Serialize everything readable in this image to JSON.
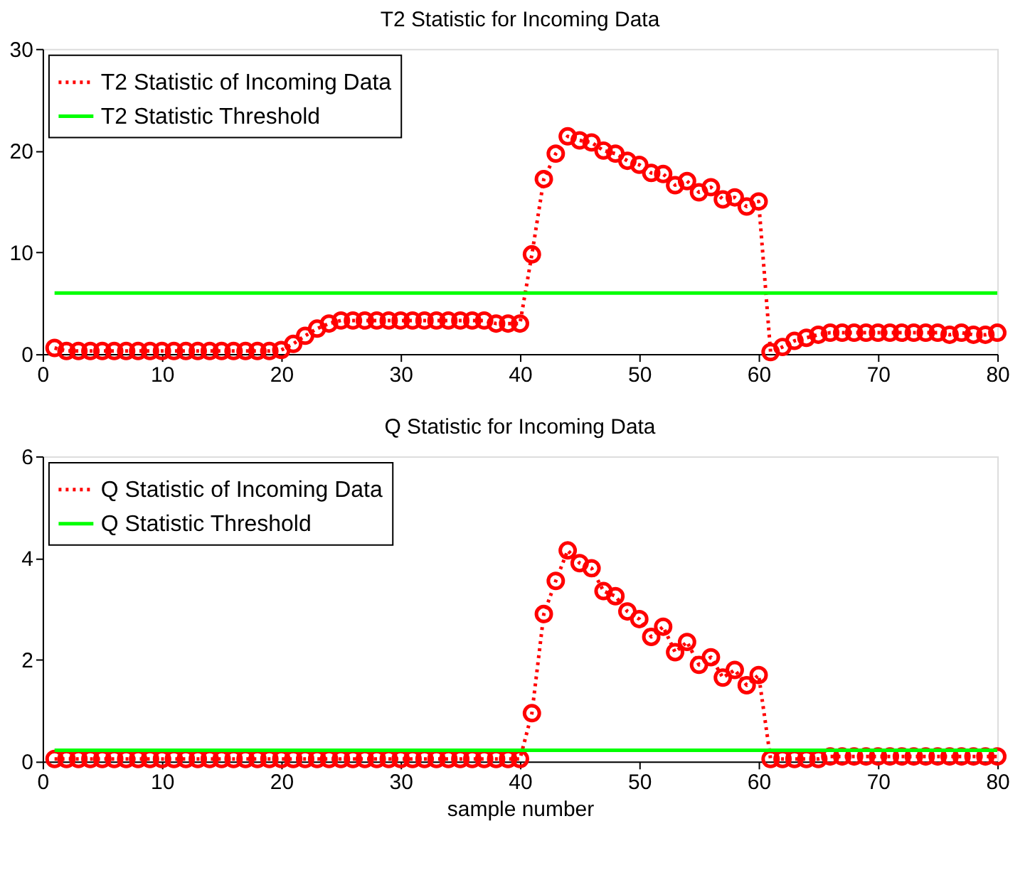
{
  "chart_data": [
    {
      "type": "line",
      "title": "T2 Statistic for Incoming Data",
      "x": [
        1,
        2,
        3,
        4,
        5,
        6,
        7,
        8,
        9,
        10,
        11,
        12,
        13,
        14,
        15,
        16,
        17,
        18,
        19,
        20,
        21,
        22,
        23,
        24,
        25,
        26,
        27,
        28,
        29,
        30,
        31,
        32,
        33,
        34,
        35,
        36,
        37,
        38,
        39,
        40,
        41,
        42,
        43,
        44,
        45,
        46,
        47,
        48,
        49,
        50,
        51,
        52,
        53,
        54,
        55,
        56,
        57,
        58,
        59,
        60,
        61,
        62,
        63,
        64,
        65,
        66,
        67,
        68,
        69,
        70,
        71,
        72,
        73,
        74,
        75,
        76,
        77,
        78,
        79,
        80
      ],
      "series": [
        {
          "name": "T2 Statistic of Incoming Data",
          "color": "#ff0000",
          "line_style": "dotted",
          "marker": "circle",
          "values": [
            0.6,
            0.3,
            0.3,
            0.3,
            0.3,
            0.3,
            0.3,
            0.3,
            0.3,
            0.3,
            0.3,
            0.3,
            0.3,
            0.3,
            0.3,
            0.3,
            0.3,
            0.3,
            0.3,
            0.4,
            1.0,
            1.8,
            2.5,
            3.0,
            3.3,
            3.3,
            3.3,
            3.3,
            3.3,
            3.3,
            3.3,
            3.3,
            3.3,
            3.3,
            3.3,
            3.3,
            3.3,
            3.0,
            3.0,
            3.0,
            9.8,
            17.2,
            19.7,
            21.4,
            21.0,
            20.8,
            20.0,
            19.7,
            19.0,
            18.6,
            17.8,
            17.7,
            16.6,
            17.0,
            15.9,
            16.4,
            15.2,
            15.4,
            14.5,
            15.0,
            0.2,
            0.7,
            1.3,
            1.6,
            1.9,
            2.1,
            2.1,
            2.1,
            2.1,
            2.1,
            2.1,
            2.1,
            2.1,
            2.1,
            2.1,
            1.9,
            2.1,
            1.9,
            1.9,
            2.1
          ]
        },
        {
          "name": "T2 Statistic Threshold",
          "color": "#00ff00",
          "line_style": "solid",
          "marker": "none",
          "values": [
            6.0,
            6.0,
            6.0,
            6.0,
            6.0,
            6.0,
            6.0,
            6.0,
            6.0,
            6.0,
            6.0,
            6.0,
            6.0,
            6.0,
            6.0,
            6.0,
            6.0,
            6.0,
            6.0,
            6.0,
            6.0,
            6.0,
            6.0,
            6.0,
            6.0,
            6.0,
            6.0,
            6.0,
            6.0,
            6.0,
            6.0,
            6.0,
            6.0,
            6.0,
            6.0,
            6.0,
            6.0,
            6.0,
            6.0,
            6.0,
            6.0,
            6.0,
            6.0,
            6.0,
            6.0,
            6.0,
            6.0,
            6.0,
            6.0,
            6.0,
            6.0,
            6.0,
            6.0,
            6.0,
            6.0,
            6.0,
            6.0,
            6.0,
            6.0,
            6.0,
            6.0,
            6.0,
            6.0,
            6.0,
            6.0,
            6.0,
            6.0,
            6.0,
            6.0,
            6.0,
            6.0,
            6.0,
            6.0,
            6.0,
            6.0,
            6.0,
            6.0,
            6.0,
            6.0,
            6.0
          ]
        }
      ],
      "xlim": [
        0,
        80
      ],
      "xticks": [
        0,
        10,
        20,
        30,
        40,
        50,
        60,
        70,
        80
      ],
      "ylim": [
        0,
        30
      ],
      "yticks": [
        0,
        10,
        20,
        30
      ],
      "grid": false,
      "legend": "top left"
    },
    {
      "type": "line",
      "title": "Q Statistic for Incoming Data",
      "xlabel": "sample number",
      "x": [
        1,
        2,
        3,
        4,
        5,
        6,
        7,
        8,
        9,
        10,
        11,
        12,
        13,
        14,
        15,
        16,
        17,
        18,
        19,
        20,
        21,
        22,
        23,
        24,
        25,
        26,
        27,
        28,
        29,
        30,
        31,
        32,
        33,
        34,
        35,
        36,
        37,
        38,
        39,
        40,
        41,
        42,
        43,
        44,
        45,
        46,
        47,
        48,
        49,
        50,
        51,
        52,
        53,
        54,
        55,
        56,
        57,
        58,
        59,
        60,
        61,
        62,
        63,
        64,
        65,
        66,
        67,
        68,
        69,
        70,
        71,
        72,
        73,
        74,
        75,
        76,
        77,
        78,
        79,
        80
      ],
      "series": [
        {
          "name": "Q Statistic of Incoming Data",
          "color": "#ff0000",
          "line_style": "dotted",
          "marker": "circle",
          "values": [
            0.05,
            0.05,
            0.05,
            0.05,
            0.05,
            0.05,
            0.05,
            0.05,
            0.05,
            0.05,
            0.05,
            0.05,
            0.05,
            0.05,
            0.05,
            0.05,
            0.05,
            0.05,
            0.05,
            0.05,
            0.05,
            0.05,
            0.05,
            0.05,
            0.05,
            0.05,
            0.05,
            0.05,
            0.05,
            0.05,
            0.05,
            0.05,
            0.05,
            0.05,
            0.05,
            0.05,
            0.05,
            0.05,
            0.05,
            0.05,
            0.95,
            2.9,
            3.55,
            4.15,
            3.9,
            3.8,
            3.35,
            3.25,
            2.95,
            2.8,
            2.45,
            2.65,
            2.15,
            2.35,
            1.9,
            2.05,
            1.65,
            1.8,
            1.5,
            1.7,
            0.05,
            0.05,
            0.05,
            0.05,
            0.05,
            0.1,
            0.1,
            0.1,
            0.1,
            0.1,
            0.1,
            0.1,
            0.1,
            0.1,
            0.1,
            0.1,
            0.1,
            0.1,
            0.1,
            0.1
          ]
        },
        {
          "name": "Q Statistic Threshold",
          "color": "#00ff00",
          "line_style": "solid",
          "marker": "none",
          "values": [
            0.22,
            0.22,
            0.22,
            0.22,
            0.22,
            0.22,
            0.22,
            0.22,
            0.22,
            0.22,
            0.22,
            0.22,
            0.22,
            0.22,
            0.22,
            0.22,
            0.22,
            0.22,
            0.22,
            0.22,
            0.22,
            0.22,
            0.22,
            0.22,
            0.22,
            0.22,
            0.22,
            0.22,
            0.22,
            0.22,
            0.22,
            0.22,
            0.22,
            0.22,
            0.22,
            0.22,
            0.22,
            0.22,
            0.22,
            0.22,
            0.22,
            0.22,
            0.22,
            0.22,
            0.22,
            0.22,
            0.22,
            0.22,
            0.22,
            0.22,
            0.22,
            0.22,
            0.22,
            0.22,
            0.22,
            0.22,
            0.22,
            0.22,
            0.22,
            0.22,
            0.22,
            0.22,
            0.22,
            0.22,
            0.22,
            0.22,
            0.22,
            0.22,
            0.22,
            0.22,
            0.22,
            0.22,
            0.22,
            0.22,
            0.22,
            0.22,
            0.22,
            0.22,
            0.22,
            0.22
          ]
        }
      ],
      "xlim": [
        0,
        80
      ],
      "xticks": [
        0,
        10,
        20,
        30,
        40,
        50,
        60,
        70,
        80
      ],
      "ylim": [
        0,
        6
      ],
      "yticks": [
        0,
        2,
        4,
        6
      ],
      "grid": false,
      "legend": "top left"
    }
  ]
}
